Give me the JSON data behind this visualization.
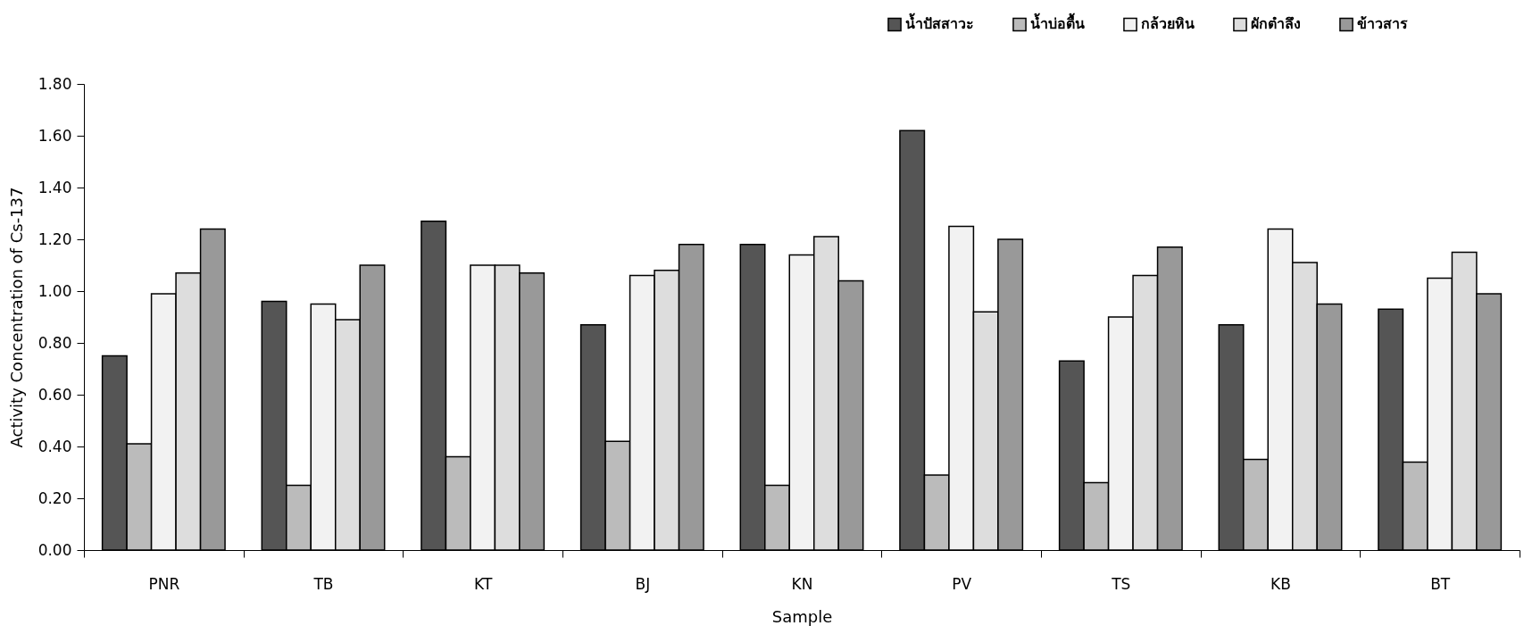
{
  "chart_data": {
    "type": "bar",
    "xlabel": "Sample",
    "ylabel": "Activity Concentration of Cs-137",
    "categories": [
      "PNR",
      "TB",
      "KT",
      "BJ",
      "KN",
      "PV",
      "TS",
      "KB",
      "BT"
    ],
    "series": [
      {
        "name": "น้ำปัสสาวะ",
        "color": "#555555",
        "values": [
          0.75,
          0.96,
          1.27,
          0.87,
          1.18,
          1.62,
          0.73,
          0.87,
          0.93
        ]
      },
      {
        "name": "น้ำบ่อตื้น",
        "color": "#bbbbbb",
        "values": [
          0.41,
          0.25,
          0.36,
          0.42,
          0.25,
          0.29,
          0.26,
          0.35,
          0.34
        ]
      },
      {
        "name": "กล้วยหิน",
        "color": "#f2f2f2",
        "values": [
          0.99,
          0.95,
          1.1,
          1.06,
          1.14,
          1.25,
          0.9,
          1.24,
          1.05
        ]
      },
      {
        "name": "ผักตำลึง",
        "color": "#dddddd",
        "values": [
          1.07,
          0.89,
          1.1,
          1.08,
          1.21,
          0.92,
          1.06,
          1.11,
          1.15
        ]
      },
      {
        "name": "ข้าวสาร",
        "color": "#999999",
        "values": [
          1.24,
          1.1,
          1.07,
          1.18,
          1.04,
          1.2,
          1.17,
          0.95,
          0.99
        ]
      }
    ],
    "ylim": [
      0,
      1.8
    ],
    "yticks": [
      {
        "value": 0,
        "label": "0.00"
      },
      {
        "value": 0.2,
        "label": "0.20"
      },
      {
        "value": 0.4,
        "label": "0.40"
      },
      {
        "value": 0.6,
        "label": "0.60"
      },
      {
        "value": 0.8,
        "label": "0.80"
      },
      {
        "value": 1,
        "label": "1.00"
      },
      {
        "value": 1.2,
        "label": "1.20"
      },
      {
        "value": 1.4,
        "label": "1.40"
      },
      {
        "value": 1.6,
        "label": "1.60"
      },
      {
        "value": 1.8,
        "label": "1.80"
      }
    ],
    "grid": false,
    "legend": "top right"
  }
}
